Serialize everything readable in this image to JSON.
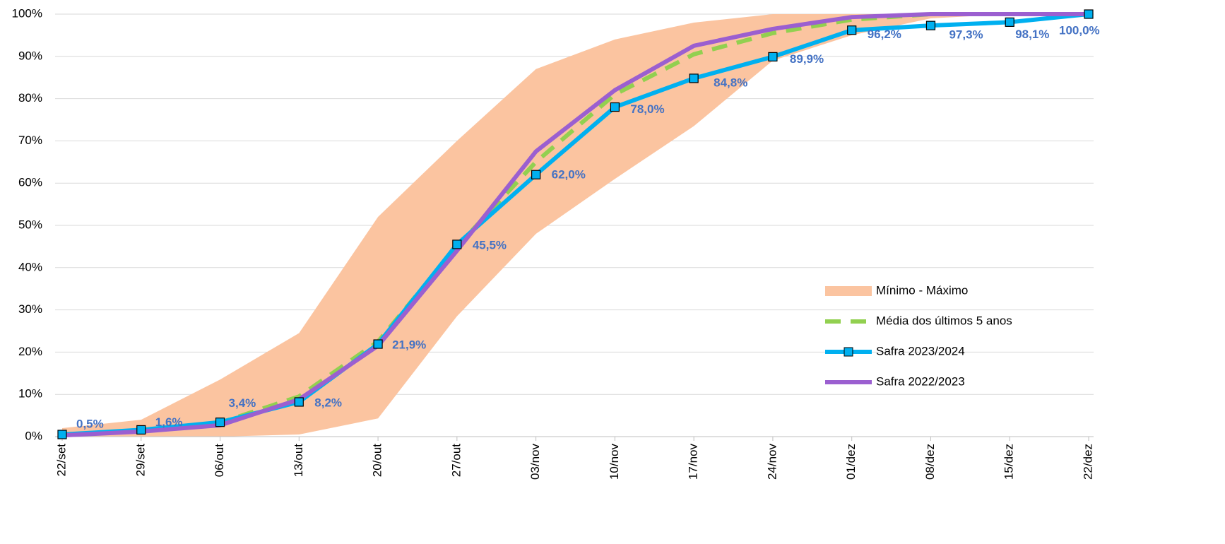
{
  "chart_data": {
    "type": "line",
    "categories": [
      "22/set",
      "29/set",
      "06/out",
      "13/out",
      "20/out",
      "27/out",
      "03/nov",
      "10/nov",
      "17/nov",
      "24/nov",
      "01/dez",
      "08/dez",
      "15/dez",
      "22/dez"
    ],
    "ylim": [
      0,
      100
    ],
    "yticks": [
      {
        "value": 0,
        "label": "0%"
      },
      {
        "value": 10,
        "label": "10%"
      },
      {
        "value": 20,
        "label": "20%"
      },
      {
        "value": 30,
        "label": "30%"
      },
      {
        "value": 40,
        "label": "40%"
      },
      {
        "value": 50,
        "label": "50%"
      },
      {
        "value": 60,
        "label": "60%"
      },
      {
        "value": 70,
        "label": "70%"
      },
      {
        "value": 80,
        "label": "80%"
      },
      {
        "value": 90,
        "label": "90%"
      },
      {
        "value": 100,
        "label": "100%"
      }
    ],
    "grid": true,
    "band": {
      "name": "Mínimo - Máximo",
      "color": "#fbc4a0",
      "low": [
        0,
        0,
        0,
        0.5,
        4.3,
        28.5,
        48,
        61,
        73.5,
        89,
        95,
        99,
        100,
        100
      ],
      "high": [
        2,
        4,
        13.5,
        24.5,
        52,
        70,
        87,
        94,
        98,
        100,
        100,
        100,
        100,
        100
      ]
    },
    "series": [
      {
        "name": "Média dos últimos 5 anos",
        "color": "#92d050",
        "dashed": true,
        "values": [
          0.4,
          1.4,
          3.3,
          9.5,
          22.5,
          45,
          65,
          81,
          90.5,
          95.5,
          98.7,
          100,
          100,
          100
        ]
      },
      {
        "name": "Safra 2023/2024",
        "color": "#00b0f0",
        "markers": true,
        "values": [
          0.5,
          1.6,
          3.4,
          8.2,
          21.9,
          45.5,
          62.0,
          78.0,
          84.8,
          89.9,
          96.2,
          97.3,
          98.1,
          100.0
        ],
        "value_labels": [
          "0,5%",
          "1,6%",
          "3,4%",
          "8,2%",
          "21,9%",
          "45,5%",
          "62,0%",
          "78,0%",
          "84,8%",
          "89,9%",
          "96,2%",
          "97,3%",
          "98,1%",
          "100,0%"
        ]
      },
      {
        "name": "Safra 2022/2023",
        "color": "#9b5fd0",
        "values": [
          0.3,
          1.2,
          2.7,
          8.8,
          21.5,
          44,
          67.5,
          82,
          92.5,
          96.5,
          99.3,
          100,
          100,
          100
        ]
      }
    ]
  }
}
